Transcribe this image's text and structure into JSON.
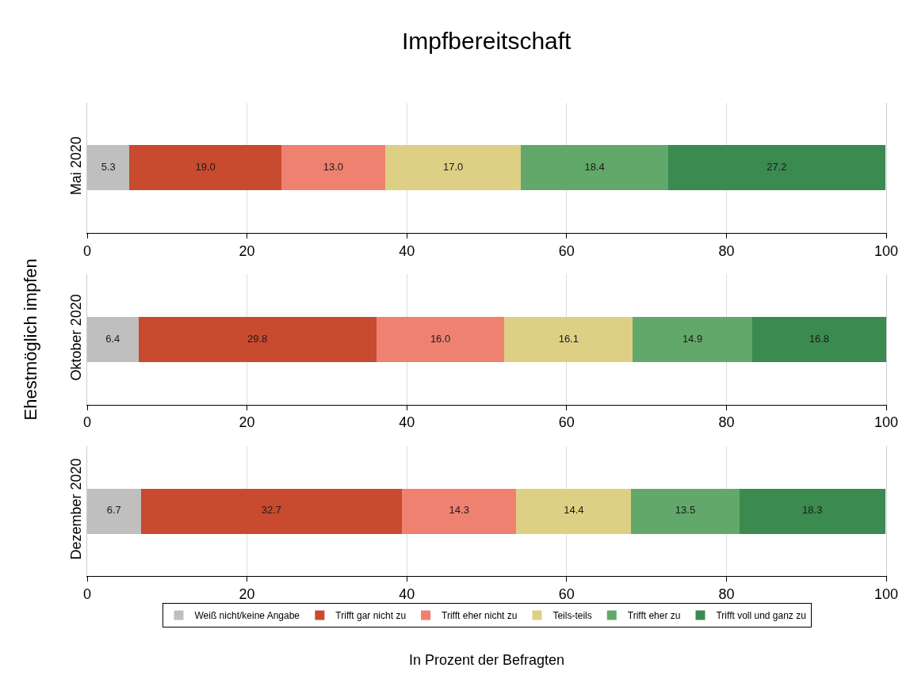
{
  "chart_data": [
    {
      "type": "bar",
      "orientation": "horizontal",
      "stacked": true,
      "title": "Impfbereitschaft",
      "categories": [
        "Mai 2020"
      ],
      "xlim": [
        0,
        100
      ],
      "xticks": [
        0,
        20,
        40,
        60,
        80,
        100
      ],
      "grid": "x",
      "legend": false,
      "series": [
        {
          "color": "#bfbfbf",
          "values": [
            5.3
          ],
          "value_labels": [
            "5.3"
          ]
        },
        {
          "color": "#c84b2f",
          "values": [
            19.0
          ],
          "value_labels": [
            "19.0"
          ]
        },
        {
          "color": "#ee8170",
          "values": [
            13.0
          ],
          "value_labels": [
            "13.0"
          ]
        },
        {
          "color": "#ddd084",
          "values": [
            17.0
          ],
          "value_labels": [
            "17.0"
          ]
        },
        {
          "color": "#62a86a",
          "values": [
            18.4
          ],
          "value_labels": [
            "18.4"
          ]
        },
        {
          "color": "#3b8a50",
          "values": [
            27.2
          ],
          "value_labels": [
            "27.2"
          ]
        }
      ]
    },
    {
      "type": "bar",
      "orientation": "horizontal",
      "stacked": true,
      "ylabel": "Ehestmöglich impfen",
      "categories": [
        "Oktober 2020"
      ],
      "xlim": [
        0,
        100
      ],
      "xticks": [
        0,
        20,
        40,
        60,
        80,
        100
      ],
      "grid": "x",
      "legend": false,
      "series": [
        {
          "color": "#bfbfbf",
          "values": [
            6.4
          ],
          "value_labels": [
            "6.4"
          ]
        },
        {
          "color": "#c84b2f",
          "values": [
            29.8
          ],
          "value_labels": [
            "29.8"
          ]
        },
        {
          "color": "#ee8170",
          "values": [
            16.0
          ],
          "value_labels": [
            "16.0"
          ]
        },
        {
          "color": "#ddd084",
          "values": [
            16.1
          ],
          "value_labels": [
            "16.1"
          ]
        },
        {
          "color": "#62a86a",
          "values": [
            14.9
          ],
          "value_labels": [
            "14.9"
          ]
        },
        {
          "color": "#3b8a50",
          "values": [
            16.8
          ],
          "value_labels": [
            "16.8"
          ]
        }
      ]
    },
    {
      "type": "bar",
      "orientation": "horizontal",
      "stacked": true,
      "xlabel": "In Prozent der Befragten",
      "categories": [
        "Dezember 2020"
      ],
      "xlim": [
        0,
        100
      ],
      "xticks": [
        0,
        20,
        40,
        60,
        80,
        100
      ],
      "grid": "x",
      "legend": "bottom",
      "series": [
        {
          "name": "Weiß nicht/keine Angabe",
          "color": "#bfbfbf",
          "values": [
            6.7
          ],
          "value_labels": [
            "6.7"
          ]
        },
        {
          "name": "Trifft gar nicht zu",
          "color": "#c84b2f",
          "values": [
            32.7
          ],
          "value_labels": [
            "32.7"
          ]
        },
        {
          "name": "Trifft eher nicht zu",
          "color": "#ee8170",
          "values": [
            14.3
          ],
          "value_labels": [
            "14.3"
          ]
        },
        {
          "name": "Teils-teils",
          "color": "#ddd084",
          "values": [
            14.4
          ],
          "value_labels": [
            "14.4"
          ]
        },
        {
          "name": "Trifft eher zu",
          "color": "#62a86a",
          "values": [
            13.5
          ],
          "value_labels": [
            "13.5"
          ]
        },
        {
          "name": "Trifft voll und ganz zu",
          "color": "#3b8a50",
          "values": [
            18.3
          ],
          "value_labels": [
            "18.3"
          ]
        }
      ]
    }
  ]
}
